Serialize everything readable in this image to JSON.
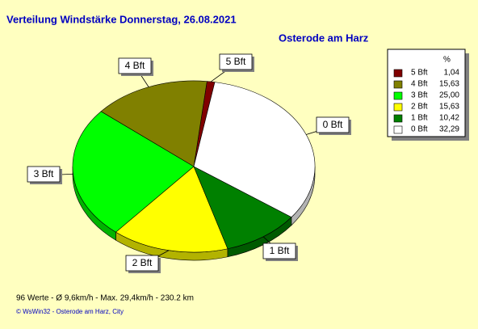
{
  "chart_data": {
    "type": "pie",
    "title": "Verteilung Windstärke  Donnerstag, 26.08.2021",
    "subtitle": "Osterode am Harz",
    "legend_header": "%",
    "categories": [
      "5 Bft",
      "4 Bft",
      "3 Bft",
      "2 Bft",
      "1 Bft",
      "0 Bft"
    ],
    "values": [
      1.04,
      15.63,
      25.0,
      15.63,
      10.42,
      32.29
    ],
    "value_labels": [
      "1,04",
      "15,63",
      "25,00",
      "15,63",
      "10,42",
      "32,29"
    ],
    "colors": [
      "#800000",
      "#808000",
      "#00ff00",
      "#ffff00",
      "#008000",
      "#ffffff"
    ],
    "legend": "top-right",
    "footer": "96 Werte   -   Ø 9,6km/h  -  Max. 29,4km/h   -   230.2 km",
    "credit": "© WsWin32  -  Osterode am Harz, City"
  }
}
